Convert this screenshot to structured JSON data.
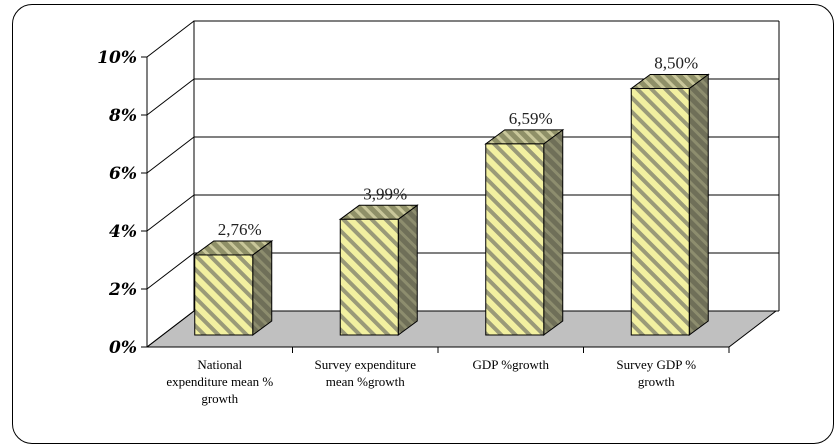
{
  "chart_data": {
    "type": "bar",
    "title": "",
    "xlabel": "",
    "ylabel": "",
    "categories": [
      [
        "National",
        "expenditure mean %",
        "growth"
      ],
      [
        "Survey expenditure",
        "mean %growth"
      ],
      [
        "GDP %growth"
      ],
      [
        "Survey GDP %",
        "growth"
      ]
    ],
    "values": [
      2.76,
      3.99,
      6.59,
      8.5
    ],
    "value_labels": [
      "2,76%",
      "3,99%",
      "6,59%",
      "8,50%"
    ],
    "yticks": [
      0,
      2,
      4,
      6,
      8,
      10
    ],
    "ytick_labels": [
      "0%",
      "2%",
      "4%",
      "6%",
      "8%",
      "10%"
    ],
    "ylim": [
      0,
      10
    ],
    "grid": true,
    "style": "3d-column",
    "colors": {
      "bar_light": "#f2f0a0",
      "bar_stripe": "#9a9a78",
      "bar_top": "#8f9068",
      "bar_side": "#6f6f58",
      "floor": "#c0c0c0"
    }
  }
}
